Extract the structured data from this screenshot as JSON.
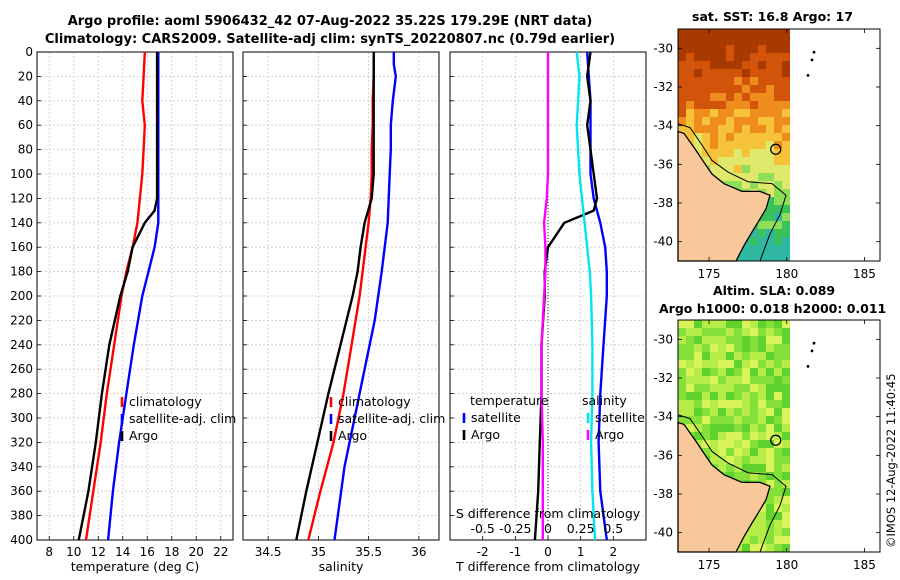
{
  "title_line1": "Argo profile: aoml 5906432_42 07-Aug-2022 35.22S 179.29E (NRT data)",
  "title_line2": "Climatology: CARS2009. Satellite-adj clim: synTS_20220807.nc (0.79d earlier)",
  "map1_title": "sat. SST: 16.8 Argo: 17",
  "map2_title_line1": "Altim. SLA: 0.089",
  "map2_title_line2": "Argo h1000: 0.018 h2000: 0.011",
  "timestamp": "©IMOS 12-Aug-2022 11:40:45",
  "colors": {
    "climatology": "#ff0000",
    "satellite": "#0000ff",
    "argo": "#000000",
    "salinity_satellite": "#00e5ee",
    "salinity_argo": "#ff00ff"
  },
  "chart_data": [
    {
      "type": "line",
      "id": "temperature",
      "xlabel": "temperature (deg C)",
      "ylabel": "",
      "xlim": [
        7,
        23
      ],
      "ylim": [
        400,
        0
      ],
      "xticks": [
        "8",
        "10",
        "12",
        "14",
        "16",
        "18",
        "20",
        "22"
      ],
      "yticks": [
        "0",
        "20",
        "40",
        "60",
        "80",
        "100",
        "120",
        "140",
        "160",
        "180",
        "200",
        "220",
        "240",
        "260",
        "280",
        "300",
        "320",
        "340",
        "360",
        "380",
        "400"
      ],
      "grid": true,
      "legend": [
        "climatology",
        "satellite-adj. clim",
        "Argo"
      ],
      "legend_position": "lower-right",
      "series": [
        {
          "name": "climatology",
          "depth": [
            0,
            20,
            40,
            60,
            80,
            100,
            120,
            140,
            160,
            180,
            200,
            240,
            280,
            320,
            360,
            400
          ],
          "values": [
            15.8,
            15.7,
            15.6,
            15.8,
            15.7,
            15.6,
            15.4,
            15.2,
            14.8,
            14.3,
            13.9,
            13.3,
            12.7,
            12.2,
            11.6,
            11.0
          ]
        },
        {
          "name": "satellite-adj. clim",
          "depth": [
            0,
            20,
            40,
            60,
            80,
            100,
            120,
            140,
            160,
            180,
            200,
            240,
            280,
            320,
            360,
            400
          ],
          "values": [
            16.9,
            16.9,
            16.9,
            16.9,
            16.9,
            16.9,
            16.9,
            16.9,
            16.6,
            16.1,
            15.6,
            14.9,
            14.3,
            13.7,
            13.2,
            12.8
          ]
        },
        {
          "name": "Argo",
          "depth": [
            0,
            20,
            40,
            60,
            80,
            100,
            120,
            130,
            140,
            160,
            180,
            200,
            240,
            280,
            320,
            360,
            380,
            400
          ],
          "values": [
            16.8,
            16.8,
            16.8,
            16.8,
            16.8,
            16.8,
            16.8,
            16.6,
            15.8,
            14.8,
            14.4,
            13.8,
            12.9,
            12.3,
            11.8,
            11.2,
            10.8,
            10.4
          ]
        }
      ]
    },
    {
      "type": "line",
      "id": "salinity",
      "xlabel": "salinity",
      "ylabel": "",
      "xlim": [
        34.25,
        36.2
      ],
      "ylim": [
        400,
        0
      ],
      "xticks": [
        "34.5",
        "35",
        "35.5",
        "36"
      ],
      "grid": true,
      "legend": [
        "climatology",
        "satellite-adj. clim",
        "Argo"
      ],
      "legend_position": "lower-right",
      "series": [
        {
          "name": "climatology",
          "depth": [
            0,
            20,
            40,
            60,
            80,
            100,
            120,
            140,
            160,
            180,
            200,
            240,
            280,
            320,
            360,
            400
          ],
          "values": [
            35.55,
            35.55,
            35.54,
            35.54,
            35.53,
            35.53,
            35.52,
            35.5,
            35.47,
            35.44,
            35.41,
            35.33,
            35.25,
            35.15,
            35.02,
            34.9
          ]
        },
        {
          "name": "satellite-adj. clim",
          "depth": [
            0,
            10,
            20,
            40,
            60,
            80,
            100,
            140,
            180,
            220,
            260,
            300,
            340,
            400
          ],
          "values": [
            35.75,
            35.75,
            35.77,
            35.74,
            35.72,
            35.72,
            35.71,
            35.69,
            35.63,
            35.56,
            35.46,
            35.36,
            35.26,
            35.16
          ]
        },
        {
          "name": "Argo",
          "depth": [
            0,
            20,
            40,
            60,
            80,
            100,
            120,
            140,
            160,
            180,
            200,
            240,
            280,
            320,
            360,
            400
          ],
          "values": [
            35.55,
            35.55,
            35.55,
            35.55,
            35.55,
            35.55,
            35.53,
            35.46,
            35.42,
            35.39,
            35.34,
            35.22,
            35.1,
            34.99,
            34.88,
            34.78
          ]
        }
      ]
    },
    {
      "type": "line",
      "id": "difference",
      "xlabel": "T difference from climatology",
      "xlim": [
        -3,
        3
      ],
      "ylim": [
        400,
        0
      ],
      "xticks": [
        "-2",
        "-1",
        "0",
        "1",
        "2"
      ],
      "secondary_xlabel": "S difference from climatology",
      "secondary_xticks": [
        "-0.5",
        "-0.25",
        "0",
        "0.25",
        "0.5"
      ],
      "grid": true,
      "legend_temperature_title": "temperature",
      "legend_salinity_title": "salinity",
      "legend_temperature": [
        "satellite",
        "Argo"
      ],
      "legend_salinity": [
        "satellite",
        "Argo"
      ],
      "series": [
        {
          "name": "temperature satellite",
          "depth": [
            0,
            20,
            40,
            60,
            80,
            100,
            120,
            140,
            160,
            180,
            200,
            240,
            280,
            320,
            360,
            400
          ],
          "values": [
            1.2,
            1.25,
            1.3,
            1.3,
            1.3,
            1.3,
            1.4,
            1.6,
            1.75,
            1.8,
            1.8,
            1.7,
            1.6,
            1.55,
            1.6,
            1.8
          ]
        },
        {
          "name": "temperature Argo",
          "depth": [
            0,
            20,
            40,
            60,
            80,
            100,
            120,
            130,
            140,
            160,
            180,
            200,
            240,
            280,
            320,
            360,
            400
          ],
          "values": [
            1.3,
            1.2,
            1.3,
            1.2,
            1.3,
            1.4,
            1.5,
            1.4,
            0.5,
            0.0,
            -0.1,
            -0.1,
            -0.2,
            -0.2,
            -0.25,
            -0.3,
            -0.4
          ]
        },
        {
          "name": "salinity satellite",
          "depth": [
            0,
            20,
            40,
            60,
            80,
            100,
            120,
            140,
            160,
            180,
            200,
            240,
            280,
            320,
            360,
            400
          ],
          "values": [
            0.22,
            0.24,
            0.23,
            0.22,
            0.23,
            0.24,
            0.26,
            0.28,
            0.3,
            0.32,
            0.33,
            0.34,
            0.34,
            0.33,
            0.34,
            0.36
          ]
        },
        {
          "name": "salinity Argo",
          "depth": [
            0,
            20,
            40,
            60,
            80,
            100,
            120,
            140,
            160,
            180,
            200,
            240,
            280,
            320,
            360,
            400
          ],
          "values": [
            0.0,
            0.0,
            0.0,
            0.0,
            0.0,
            0.0,
            -0.01,
            -0.03,
            -0.02,
            -0.02,
            -0.03,
            -0.05,
            -0.05,
            -0.04,
            -0.04,
            -0.04
          ]
        }
      ]
    },
    {
      "type": "heatmap",
      "id": "sst_map",
      "title": "sat. SST: 16.8 Argo: 17",
      "xticks": [
        "175",
        "180",
        "185"
      ],
      "yticks": [
        "-30",
        "-32",
        "-34",
        "-36",
        "-38",
        "-40"
      ],
      "xlim": [
        173,
        186
      ],
      "ylim": [
        -41,
        -29
      ],
      "argo_position": {
        "lon": 179.29,
        "lat": -35.22
      }
    },
    {
      "type": "heatmap",
      "id": "sla_map",
      "title": "Altim. SLA: 0.089",
      "xticks": [
        "175",
        "180",
        "185"
      ],
      "yticks": [
        "-30",
        "-32",
        "-34",
        "-36",
        "-38",
        "-40"
      ],
      "xlim": [
        173,
        186
      ],
      "ylim": [
        -41,
        -29
      ],
      "argo_position": {
        "lon": 179.29,
        "lat": -35.22
      }
    }
  ]
}
